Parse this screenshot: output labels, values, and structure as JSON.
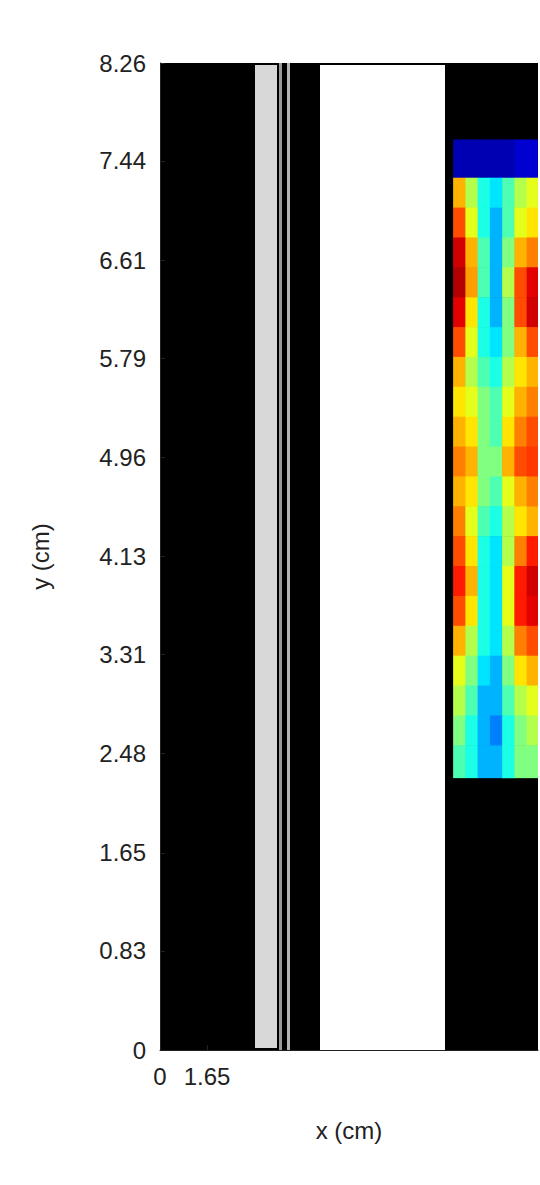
{
  "chart_data": {
    "type": "heatmap",
    "xlabel": "x (cm)",
    "ylabel": "y (cm)",
    "xlim": [
      0,
      13.27
    ],
    "ylim": [
      0,
      8.26
    ],
    "xticks": [
      0,
      1.65
    ],
    "yticks": [
      0,
      0.83,
      1.65,
      2.48,
      3.31,
      4.13,
      4.96,
      5.79,
      6.61,
      7.44,
      8.26
    ],
    "grid": false,
    "heatmap": {
      "zlim": [
        0,
        1
      ],
      "x_edges": [
        10.29,
        10.72,
        11.15,
        11.58,
        12.01,
        12.44,
        12.87,
        13.3
      ],
      "y_edges": [
        7.62,
        7.3,
        7.05,
        6.8,
        6.55,
        6.3,
        6.05,
        5.8,
        5.55,
        5.3,
        5.05,
        4.8,
        4.55,
        4.3,
        4.05,
        3.8,
        3.55,
        3.3,
        3.05,
        2.8,
        2.55,
        2.28
      ],
      "cells": [
        [
          0.05,
          0.05,
          0.05,
          0.05,
          0.05,
          0.08,
          0.08
        ],
        [
          0.7,
          0.55,
          0.4,
          0.35,
          0.45,
          0.55,
          0.6
        ],
        [
          0.8,
          0.6,
          0.4,
          0.3,
          0.45,
          0.6,
          0.65
        ],
        [
          0.92,
          0.7,
          0.45,
          0.3,
          0.5,
          0.7,
          0.75
        ],
        [
          0.95,
          0.72,
          0.45,
          0.3,
          0.55,
          0.8,
          0.9
        ],
        [
          0.9,
          0.65,
          0.4,
          0.3,
          0.5,
          0.8,
          0.92
        ],
        [
          0.8,
          0.6,
          0.4,
          0.35,
          0.5,
          0.7,
          0.8
        ],
        [
          0.7,
          0.55,
          0.45,
          0.4,
          0.55,
          0.65,
          0.7
        ],
        [
          0.65,
          0.6,
          0.5,
          0.45,
          0.6,
          0.7,
          0.75
        ],
        [
          0.7,
          0.65,
          0.5,
          0.45,
          0.65,
          0.75,
          0.8
        ],
        [
          0.75,
          0.7,
          0.5,
          0.5,
          0.7,
          0.8,
          0.82
        ],
        [
          0.7,
          0.65,
          0.5,
          0.45,
          0.6,
          0.7,
          0.75
        ],
        [
          0.75,
          0.6,
          0.45,
          0.4,
          0.55,
          0.65,
          0.7
        ],
        [
          0.8,
          0.65,
          0.4,
          0.35,
          0.55,
          0.75,
          0.85
        ],
        [
          0.85,
          0.7,
          0.4,
          0.35,
          0.6,
          0.85,
          0.92
        ],
        [
          0.8,
          0.65,
          0.4,
          0.35,
          0.6,
          0.85,
          0.9
        ],
        [
          0.7,
          0.55,
          0.4,
          0.35,
          0.55,
          0.75,
          0.8
        ],
        [
          0.6,
          0.5,
          0.35,
          0.3,
          0.5,
          0.65,
          0.7
        ],
        [
          0.55,
          0.45,
          0.3,
          0.3,
          0.45,
          0.55,
          0.6
        ],
        [
          0.5,
          0.4,
          0.3,
          0.25,
          0.4,
          0.5,
          0.55
        ],
        [
          0.45,
          0.4,
          0.3,
          0.3,
          0.4,
          0.5,
          0.5
        ]
      ]
    }
  }
}
